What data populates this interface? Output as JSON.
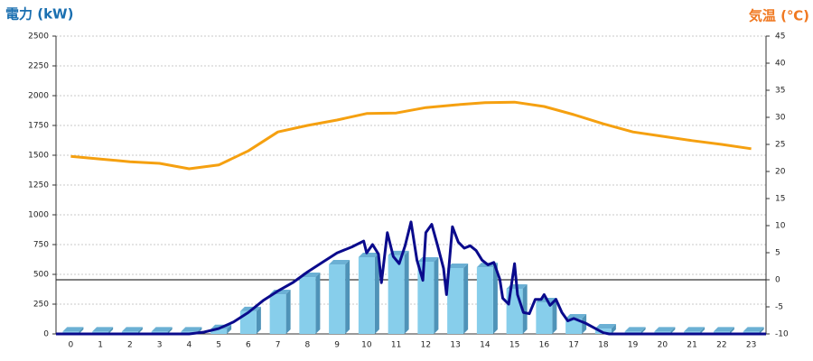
{
  "chart_data": {
    "type": "bar-line",
    "y_label": "電力 (kW)",
    "y2_label": "気温 (℃)",
    "categories": [
      0,
      1,
      2,
      3,
      4,
      5,
      6,
      7,
      8,
      9,
      10,
      11,
      12,
      13,
      14,
      15,
      16,
      17,
      18,
      19,
      20,
      21,
      22,
      23
    ],
    "ylim": [
      0,
      2500
    ],
    "yticks": [
      0,
      250,
      500,
      750,
      1000,
      1250,
      1500,
      1750,
      2000,
      2250,
      2500
    ],
    "y2lim": [
      -10,
      45
    ],
    "y2ticks": [
      -10,
      -5,
      0,
      5,
      10,
      15,
      20,
      25,
      30,
      35,
      40,
      45
    ],
    "grid": true,
    "series": [
      {
        "kind": "bar",
        "color": "#87ceeb",
        "values": [
          20,
          20,
          20,
          20,
          20,
          40,
          190,
          333,
          477,
          583,
          644,
          660,
          606,
          553,
          560,
          379,
          265,
          129,
          45,
          20,
          20,
          20,
          20,
          20
        ]
      },
      {
        "kind": "line",
        "axis": "y2",
        "color": "#f5a010",
        "values": [
          22.8,
          22.3,
          21.8,
          21.5,
          20.5,
          21.2,
          23.8,
          27.3,
          28.5,
          29.5,
          30.7,
          30.8,
          31.8,
          32.3,
          32.7,
          32.8,
          32,
          30.5,
          28.8,
          27.3,
          26.5,
          25.7,
          25,
          24.2
        ]
      },
      {
        "kind": "line",
        "color": "#0a0a8c",
        "x": [
          -0.5,
          4,
          4.5,
          5,
          5.5,
          6,
          6.5,
          7,
          7.5,
          8,
          8.5,
          9,
          9.5,
          9.9,
          10,
          10.2,
          10.4,
          10.5,
          10.7,
          10.9,
          11.1,
          11.3,
          11.5,
          11.7,
          11.9,
          12,
          12.2,
          12.4,
          12.6,
          12.7,
          12.9,
          13.1,
          13.3,
          13.5,
          13.7,
          13.9,
          14.1,
          14.3,
          14.5,
          14.6,
          14.8,
          15,
          15.1,
          15.3,
          15.5,
          15.7,
          15.9,
          16,
          16.2,
          16.4,
          16.6,
          16.8,
          17,
          17.4,
          17.7,
          18,
          18.2,
          23.5
        ],
        "values": [
          0,
          0,
          15,
          45,
          100,
          180,
          280,
          360,
          430,
          520,
          600,
          680,
          730,
          780,
          680,
          750,
          670,
          430,
          850,
          650,
          590,
          740,
          940,
          620,
          450,
          850,
          920,
          740,
          550,
          330,
          900,
          770,
          720,
          740,
          700,
          620,
          580,
          600,
          460,
          300,
          250,
          590,
          330,
          180,
          170,
          290,
          290,
          330,
          240,
          290,
          180,
          110,
          130,
          90,
          50,
          10,
          0,
          0
        ]
      }
    ]
  }
}
